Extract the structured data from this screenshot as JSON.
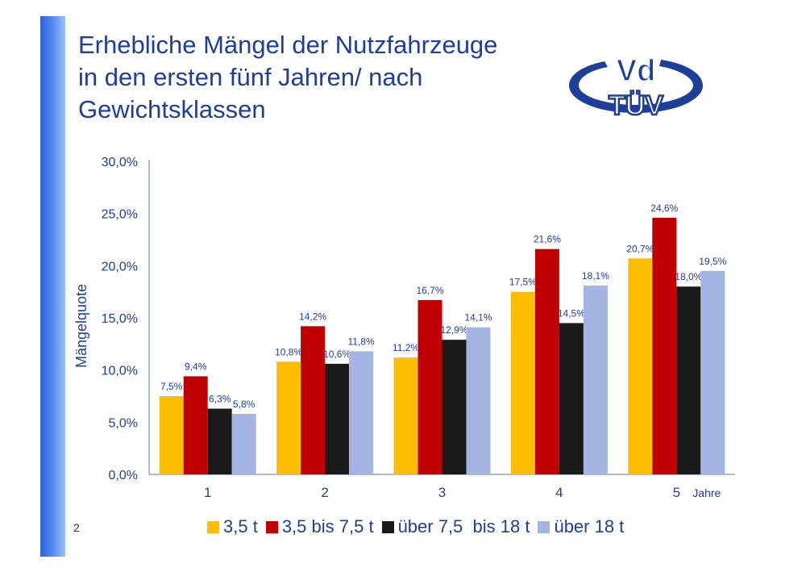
{
  "slide": {
    "title_lines": [
      "Erhebliche Mängel der Nutzfahrzeuge",
      "in den ersten fünf Jahren/ nach",
      "Gewichtsklassen"
    ],
    "page_number": "2",
    "logo_text_top": "Vd",
    "logo_text_bottom": "TÜV"
  },
  "colors": {
    "accent": "#1d3f99",
    "series": [
      "#fdbe00",
      "#c00000",
      "#1a1a1a",
      "#a4b5e3"
    ]
  },
  "chart_data": {
    "type": "bar",
    "title": "",
    "xlabel": "Jahre",
    "ylabel": "Mängelquote",
    "ylim": [
      0,
      30
    ],
    "yticks": [
      "0,0%",
      "5,0%",
      "10,0%",
      "15,0%",
      "20,0%",
      "25,0%",
      "30,0%"
    ],
    "categories": [
      "1",
      "2",
      "3",
      "4",
      "5"
    ],
    "series": [
      {
        "name": "3,5 t",
        "values": [
          7.5,
          10.8,
          11.2,
          17.5,
          20.7
        ],
        "labels": [
          "7,5%",
          "10,8%",
          "11,2%",
          "17,5%",
          "20,7%"
        ]
      },
      {
        "name": "3,5 bis 7,5 t",
        "values": [
          9.4,
          14.2,
          16.7,
          21.6,
          24.6
        ],
        "labels": [
          "9,4%",
          "14,2%",
          "16,7%",
          "21,6%",
          "24,6%"
        ]
      },
      {
        "name": "über 7,5  bis 18 t",
        "values": [
          6.3,
          10.6,
          12.9,
          14.5,
          18.0
        ],
        "labels": [
          "6,3%",
          "10,6%",
          "12,9%",
          "14,5%",
          "18,0%"
        ]
      },
      {
        "name": "über 18 t",
        "values": [
          5.8,
          11.8,
          14.1,
          18.1,
          19.5
        ],
        "labels": [
          "5,8%",
          "11,8%",
          "14,1%",
          "18,1%",
          "19,5%"
        ]
      }
    ],
    "legend_position": "bottom",
    "grid": false
  }
}
